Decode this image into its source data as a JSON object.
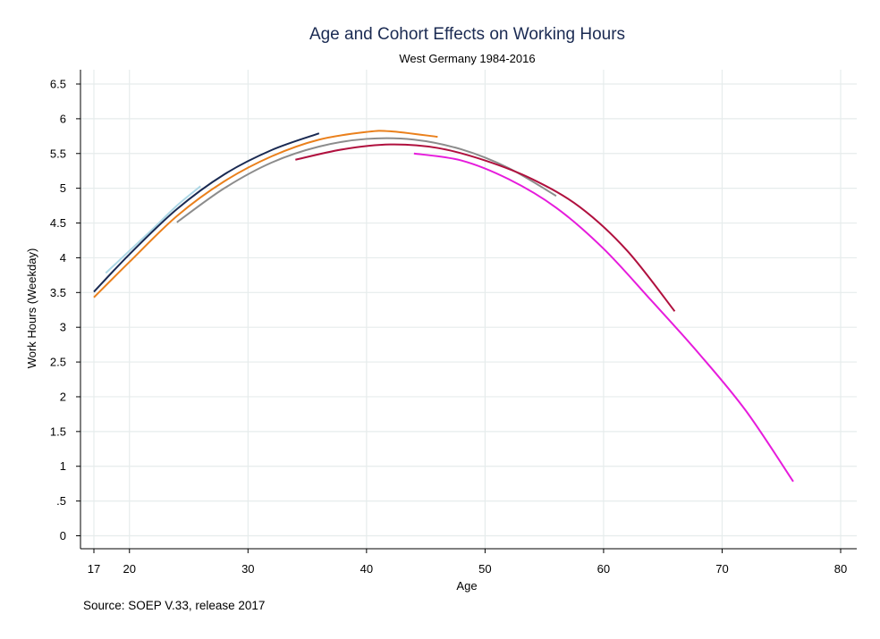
{
  "chart_data": {
    "type": "line",
    "title": "Age and Cohort Effects on Working Hours",
    "subtitle": "West Germany 1984-2016",
    "xlabel": "Age",
    "ylabel": "Work Hours (Weekday)",
    "note": "Source: SOEP V.33, release 2017",
    "xlim": [
      17,
      80
    ],
    "ylim": [
      0,
      6.5
    ],
    "xticks": [
      17,
      20,
      30,
      40,
      50,
      60,
      70,
      80
    ],
    "xtick_labels": [
      "17",
      "20",
      "30",
      "40",
      "50",
      "60",
      "70",
      "80"
    ],
    "yticks": [
      0,
      0.5,
      1,
      1.5,
      2,
      2.5,
      3,
      3.5,
      4,
      4.5,
      5,
      5.5,
      6,
      6.5
    ],
    "ytick_labels": [
      "0",
      ".5",
      "1",
      "1.5",
      "2",
      "2.5",
      "3",
      "3.5",
      "4",
      "4.5",
      "5",
      "5.5",
      "6",
      "6.5"
    ],
    "grid": true,
    "legend": "none",
    "series": [
      {
        "color": "#add8e6",
        "x": [
          18,
          20,
          22,
          24,
          26
        ],
        "y": [
          3.78,
          4.1,
          4.42,
          4.75,
          5.03
        ]
      },
      {
        "color": "#1a2a52",
        "x": [
          17,
          20,
          24,
          28,
          32,
          36
        ],
        "y": [
          3.51,
          4.05,
          4.7,
          5.2,
          5.55,
          5.79
        ]
      },
      {
        "color": "#ea801c",
        "x": [
          17,
          20,
          24,
          28,
          32,
          36,
          40,
          42,
          46
        ],
        "y": [
          3.43,
          3.94,
          4.6,
          5.1,
          5.46,
          5.7,
          5.81,
          5.82,
          5.74
        ]
      },
      {
        "color": "#8c8c8c",
        "x": [
          24,
          28,
          32,
          36,
          40,
          44,
          48,
          52,
          56
        ],
        "y": [
          4.51,
          5.0,
          5.37,
          5.6,
          5.71,
          5.7,
          5.56,
          5.29,
          4.89
        ]
      },
      {
        "color": "#b0103e",
        "x": [
          34,
          38,
          42,
          46,
          50,
          54,
          58,
          62,
          66
        ],
        "y": [
          5.41,
          5.56,
          5.63,
          5.58,
          5.4,
          5.13,
          4.73,
          4.1,
          3.23
        ]
      },
      {
        "color": "#e61cdc",
        "x": [
          44,
          48,
          52,
          56,
          60,
          64,
          68,
          72,
          76
        ],
        "y": [
          5.5,
          5.4,
          5.13,
          4.72,
          4.13,
          3.39,
          2.63,
          1.8,
          0.78
        ]
      }
    ]
  }
}
